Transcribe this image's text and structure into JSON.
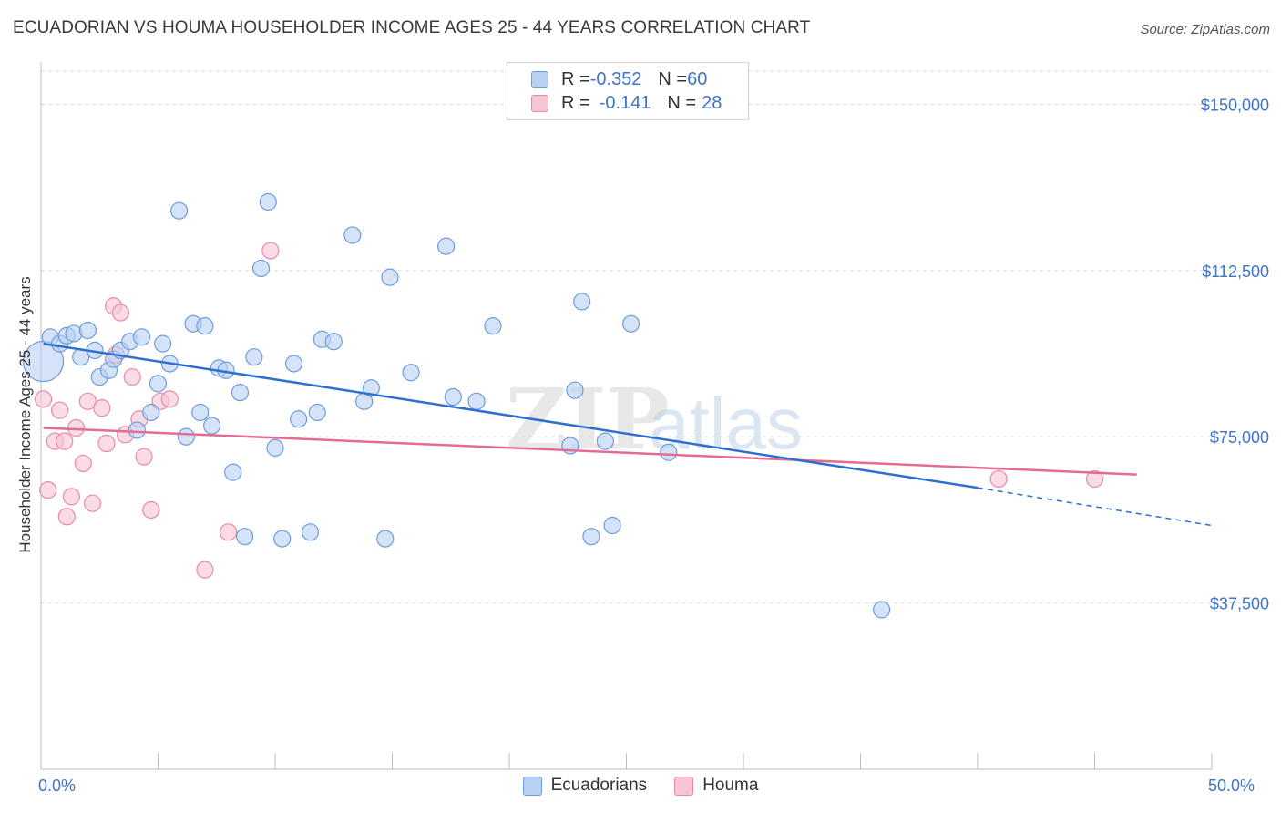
{
  "title": "ECUADORIAN VS HOUMA HOUSEHOLDER INCOME AGES 25 - 44 YEARS CORRELATION CHART",
  "source": "Source: ZipAtlas.com",
  "watermark": {
    "zip": "ZIP",
    "atlas": "atlas"
  },
  "legend": {
    "rows": [
      {
        "r_label": "R = ",
        "r_value": "-0.352",
        "n_label": "N = ",
        "n_value": "60"
      },
      {
        "r_label": "R = ",
        "r_value": "-0.141",
        "n_label": "N = ",
        "n_value": "28"
      }
    ]
  },
  "colors": {
    "ecuadorians_fill": "#b8d1f3",
    "ecuadorians_stroke": "#6f9bdc",
    "ecuadorians_line": "#2f6fd0",
    "houma_fill": "#f8c5d5",
    "houma_stroke": "#e88aa8",
    "houma_line": "#e36b96",
    "axis_text": "#3f74c9",
    "grid": "#d9d9d9"
  },
  "chart_data": {
    "type": "scatter",
    "title": "ECUADORIAN VS HOUMA HOUSEHOLDER INCOME AGES 25 - 44 YEARS CORRELATION CHART",
    "xlabel": "",
    "ylabel": "Householder Income Ages 25 - 44 years",
    "xlim": [
      0,
      50
    ],
    "ylim": [
      0,
      157500
    ],
    "x_tick_labels": [
      "0.0%",
      "50.0%"
    ],
    "y_ticks": [
      37500,
      75000,
      112500,
      150000
    ],
    "y_tick_labels": [
      "$37,500",
      "$75,000",
      "$112,500",
      "$150,000"
    ],
    "grid": true,
    "legend_position": "top-center",
    "series": [
      {
        "name": "Ecuadorians",
        "r": -0.352,
        "n": 60,
        "trend": {
          "x_start": 0.1,
          "y_start": 96000,
          "x_end": 40,
          "y_end": 63500,
          "dash_to_x": 50,
          "dash_y_end": 55000
        },
        "points": [
          {
            "x": 0.1,
            "y": 92000,
            "size": "large"
          },
          {
            "x": 0.4,
            "y": 97500
          },
          {
            "x": 0.8,
            "y": 96000
          },
          {
            "x": 1.1,
            "y": 97800
          },
          {
            "x": 1.4,
            "y": 98300
          },
          {
            "x": 1.7,
            "y": 93000
          },
          {
            "x": 2.0,
            "y": 99000
          },
          {
            "x": 2.3,
            "y": 94500
          },
          {
            "x": 2.5,
            "y": 88500
          },
          {
            "x": 2.9,
            "y": 90000
          },
          {
            "x": 3.1,
            "y": 92500
          },
          {
            "x": 3.4,
            "y": 94500
          },
          {
            "x": 3.8,
            "y": 96500
          },
          {
            "x": 4.1,
            "y": 76500
          },
          {
            "x": 4.3,
            "y": 97500
          },
          {
            "x": 4.7,
            "y": 80500
          },
          {
            "x": 5.0,
            "y": 87000
          },
          {
            "x": 5.2,
            "y": 96000
          },
          {
            "x": 5.5,
            "y": 91500
          },
          {
            "x": 5.9,
            "y": 126000
          },
          {
            "x": 6.2,
            "y": 75000
          },
          {
            "x": 6.5,
            "y": 100500
          },
          {
            "x": 6.8,
            "y": 80500
          },
          {
            "x": 7.0,
            "y": 100000
          },
          {
            "x": 7.3,
            "y": 77500
          },
          {
            "x": 7.6,
            "y": 90500
          },
          {
            "x": 7.9,
            "y": 90000
          },
          {
            "x": 8.2,
            "y": 67000
          },
          {
            "x": 8.5,
            "y": 85000
          },
          {
            "x": 8.7,
            "y": 52500
          },
          {
            "x": 9.1,
            "y": 93000
          },
          {
            "x": 9.4,
            "y": 113000
          },
          {
            "x": 9.7,
            "y": 128000
          },
          {
            "x": 10.0,
            "y": 72500
          },
          {
            "x": 10.3,
            "y": 52000
          },
          {
            "x": 10.8,
            "y": 91500
          },
          {
            "x": 11.0,
            "y": 79000
          },
          {
            "x": 11.5,
            "y": 53500
          },
          {
            "x": 11.8,
            "y": 80500
          },
          {
            "x": 12.0,
            "y": 97000
          },
          {
            "x": 12.5,
            "y": 96500
          },
          {
            "x": 13.3,
            "y": 120500
          },
          {
            "x": 13.8,
            "y": 83000
          },
          {
            "x": 14.1,
            "y": 86000
          },
          {
            "x": 14.7,
            "y": 52000
          },
          {
            "x": 14.9,
            "y": 111000
          },
          {
            "x": 15.8,
            "y": 89500
          },
          {
            "x": 17.3,
            "y": 118000
          },
          {
            "x": 17.6,
            "y": 84000
          },
          {
            "x": 18.6,
            "y": 83000
          },
          {
            "x": 19.3,
            "y": 100000
          },
          {
            "x": 22.6,
            "y": 73000
          },
          {
            "x": 22.8,
            "y": 85500
          },
          {
            "x": 23.1,
            "y": 105500
          },
          {
            "x": 23.5,
            "y": 52500
          },
          {
            "x": 24.1,
            "y": 74000
          },
          {
            "x": 24.4,
            "y": 55000
          },
          {
            "x": 25.2,
            "y": 100500
          },
          {
            "x": 26.8,
            "y": 71500
          },
          {
            "x": 35.9,
            "y": 36000
          }
        ]
      },
      {
        "name": "Houma",
        "r": -0.141,
        "n": 28,
        "trend": {
          "x_start": 0.1,
          "y_start": 77000,
          "x_end": 46.8,
          "y_end": 66500
        },
        "points": [
          {
            "x": 0.1,
            "y": 83500
          },
          {
            "x": 0.3,
            "y": 63000
          },
          {
            "x": 0.6,
            "y": 74000
          },
          {
            "x": 0.8,
            "y": 81000
          },
          {
            "x": 1.0,
            "y": 74000
          },
          {
            "x": 1.1,
            "y": 57000
          },
          {
            "x": 1.3,
            "y": 61500
          },
          {
            "x": 1.5,
            "y": 77000
          },
          {
            "x": 1.8,
            "y": 69000
          },
          {
            "x": 2.0,
            "y": 83000
          },
          {
            "x": 2.2,
            "y": 60000
          },
          {
            "x": 2.6,
            "y": 81500
          },
          {
            "x": 2.8,
            "y": 73500
          },
          {
            "x": 3.1,
            "y": 104500
          },
          {
            "x": 3.2,
            "y": 93500
          },
          {
            "x": 3.4,
            "y": 103000
          },
          {
            "x": 3.6,
            "y": 75500
          },
          {
            "x": 3.9,
            "y": 88500
          },
          {
            "x": 4.2,
            "y": 79000
          },
          {
            "x": 4.4,
            "y": 70500
          },
          {
            "x": 4.7,
            "y": 58500
          },
          {
            "x": 5.1,
            "y": 83000
          },
          {
            "x": 5.5,
            "y": 83500
          },
          {
            "x": 7.0,
            "y": 45000
          },
          {
            "x": 8.0,
            "y": 53500
          },
          {
            "x": 9.8,
            "y": 117000
          },
          {
            "x": 40.9,
            "y": 65500
          },
          {
            "x": 45.0,
            "y": 65500
          }
        ]
      }
    ]
  }
}
